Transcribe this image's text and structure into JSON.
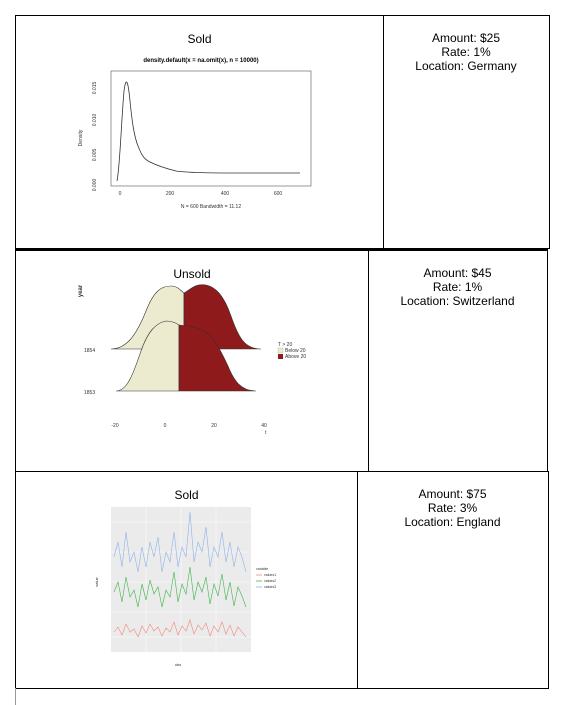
{
  "listings": [
    {
      "status": "Sold",
      "amount": "Amount: $25",
      "rate": "Rate: 1%",
      "location": "Location: Germany",
      "chart": {
        "type": "line",
        "title": "density.default(x = na.omit(x), n = 10000)",
        "xlabel": "N = 600   Bandwidth = 11.12",
        "ylabel": "Density",
        "x_ticks": [
          "0",
          "200",
          "400",
          "600"
        ],
        "y_ticks": [
          "0.000",
          "0.005",
          "0.010",
          "0.015"
        ]
      }
    },
    {
      "status": "Unsold",
      "amount": "Amount: $45",
      "rate": "Rate: 1%",
      "location": "Location: Switzerland",
      "chart": {
        "type": "area",
        "xlabel": "t",
        "ylabel": "year",
        "x_ticks": [
          "-20",
          "0",
          "20",
          "40"
        ],
        "y_ticks": [
          "1853",
          "1854"
        ],
        "legend_title": "T > 20",
        "legend": [
          "Below 20",
          "Above 20"
        ],
        "colors": [
          "#ecebd0",
          "#8e1a1c"
        ]
      }
    },
    {
      "status": "Sold",
      "amount": "Amount: $75",
      "rate": "Rate: 3%",
      "location": "Location: England",
      "chart": {
        "type": "line",
        "xlabel": "obs",
        "ylabel": "value",
        "legend_title": "variable",
        "legend": [
          "values1",
          "values2",
          "values3"
        ],
        "colors": [
          "#f08a80",
          "#3cb44b",
          "#8fb3e8"
        ]
      }
    }
  ]
}
